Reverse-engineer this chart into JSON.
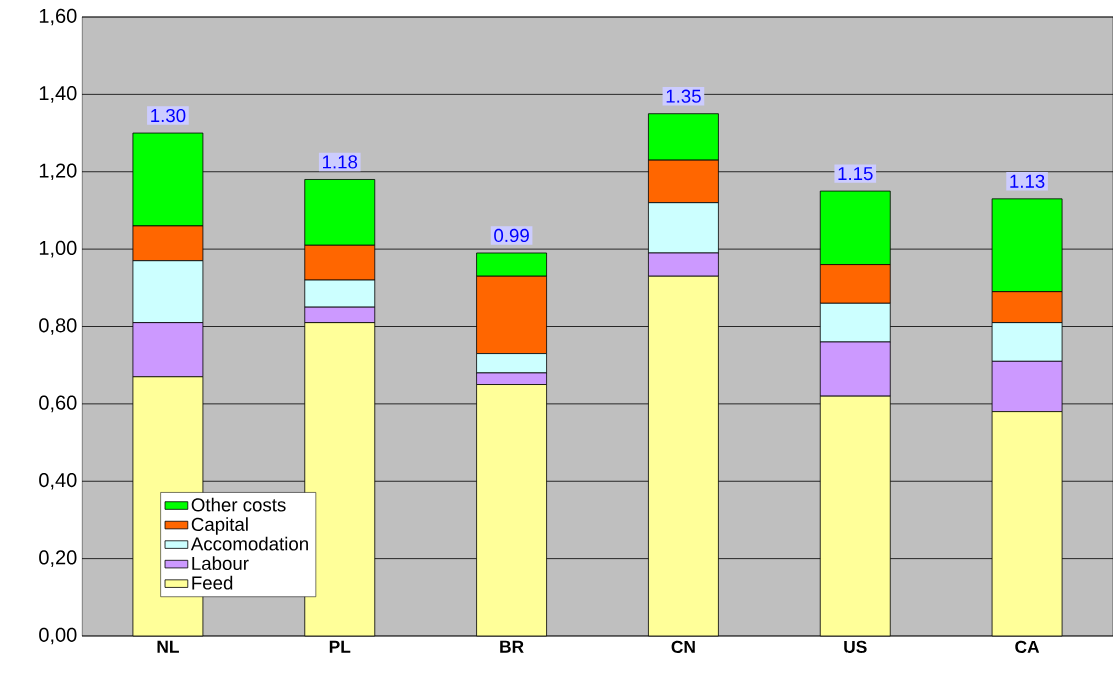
{
  "chart_data": {
    "type": "bar",
    "stacked": true,
    "categories": [
      "NL",
      "PL",
      "BR",
      "CN",
      "US",
      "CA"
    ],
    "series": [
      {
        "name": "Feed",
        "color": "#ffff99",
        "values": [
          0.67,
          0.81,
          0.65,
          0.93,
          0.62,
          0.58
        ]
      },
      {
        "name": "Labour",
        "color": "#cc99ff",
        "values": [
          0.14,
          0.04,
          0.03,
          0.06,
          0.14,
          0.13
        ]
      },
      {
        "name": "Accomodation",
        "color": "#ccffff",
        "values": [
          0.16,
          0.07,
          0.05,
          0.13,
          0.1,
          0.1
        ]
      },
      {
        "name": "Capital",
        "color": "#ff6600",
        "values": [
          0.09,
          0.09,
          0.2,
          0.11,
          0.1,
          0.08
        ]
      },
      {
        "name": "Other costs",
        "color": "#00ff00",
        "values": [
          0.24,
          0.17,
          0.06,
          0.12,
          0.19,
          0.24
        ]
      }
    ],
    "totals": [
      "1.30",
      "1.18",
      "0.99",
      "1.35",
      "1.15",
      "1.13"
    ],
    "ylim": [
      0,
      1.6
    ],
    "yticks": [
      {
        "value": 0,
        "label": "0,00"
      },
      {
        "value": 0.2,
        "label": "0,20"
      },
      {
        "value": 0.4,
        "label": "0,40"
      },
      {
        "value": 0.6,
        "label": "0,60"
      },
      {
        "value": 0.8,
        "label": "0,80"
      },
      {
        "value": 1.0,
        "label": "1,00"
      },
      {
        "value": 1.2,
        "label": "1,20"
      },
      {
        "value": 1.4,
        "label": "1,40"
      },
      {
        "value": 1.6,
        "label": "1,60"
      }
    ],
    "grid": "y",
    "legend": "bottom left"
  }
}
